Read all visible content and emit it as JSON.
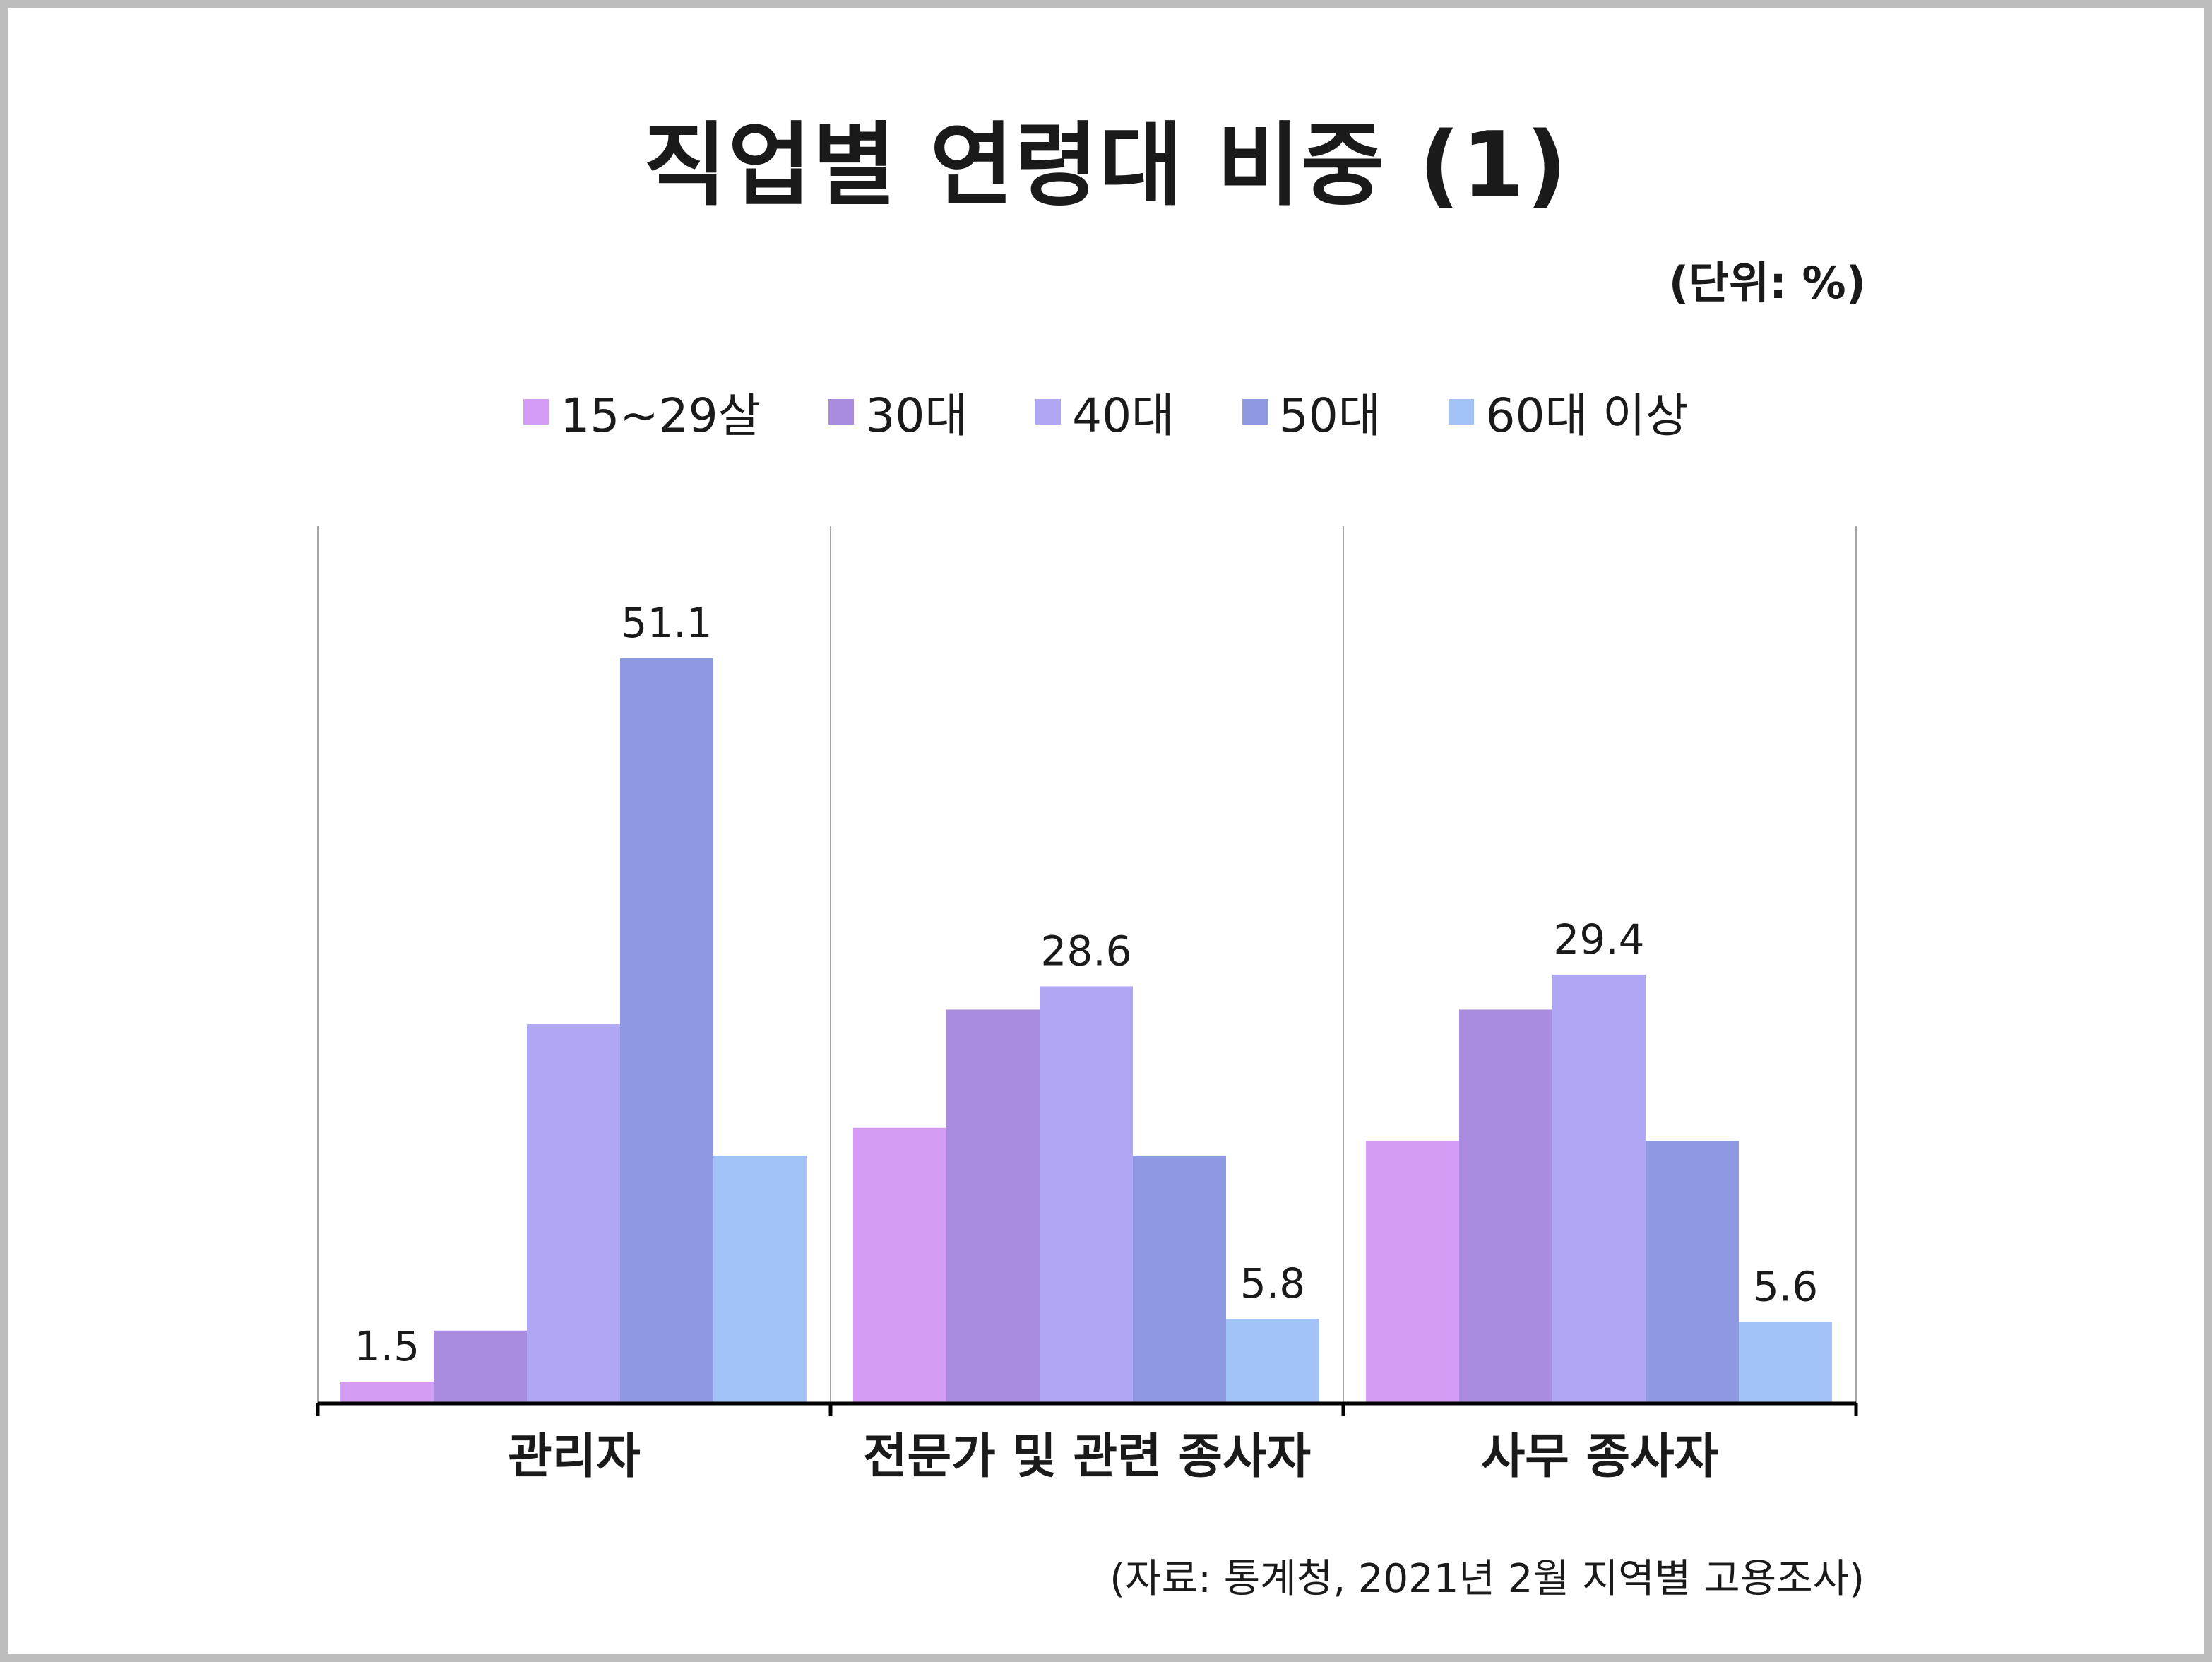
{
  "title": "직업별 연령대 비중 (1)",
  "unit_label": "(단위: %)",
  "source": "(자료: 통계청, 2021년 2월 지역별 고용조사)",
  "chart_data": {
    "type": "bar",
    "title": "직업별 연령대 비중 (1)",
    "xlabel": "",
    "ylabel": "",
    "ylim": [
      0,
      60
    ],
    "grid": false,
    "legend_position": "top",
    "categories": [
      "관리자",
      "전문가 및 관련 종사자",
      "사무 종사자"
    ],
    "series": [
      {
        "name": "15~29살",
        "color": "#d59cf6",
        "values": [
          1.5,
          18.9,
          18.0
        ]
      },
      {
        "name": "30대",
        "color": "#a98ce0",
        "values": [
          5.0,
          27.0,
          27.0
        ]
      },
      {
        "name": "40대",
        "color": "#afa6f4",
        "values": [
          26.0,
          28.6,
          29.4
        ]
      },
      {
        "name": "50대",
        "color": "#8f99e1",
        "values": [
          51.1,
          17.0,
          18.0
        ]
      },
      {
        "name": "60대 이상",
        "color": "#a3c2f8",
        "values": [
          17.0,
          5.8,
          5.6
        ]
      }
    ],
    "data_labels": [
      {
        "category": 0,
        "series": 0,
        "text": "1.5"
      },
      {
        "category": 0,
        "series": 3,
        "text": "51.1"
      },
      {
        "category": 1,
        "series": 2,
        "text": "28.6"
      },
      {
        "category": 1,
        "series": 4,
        "text": "5.8"
      },
      {
        "category": 2,
        "series": 2,
        "text": "29.4"
      },
      {
        "category": 2,
        "series": 4,
        "text": "5.6"
      }
    ]
  }
}
